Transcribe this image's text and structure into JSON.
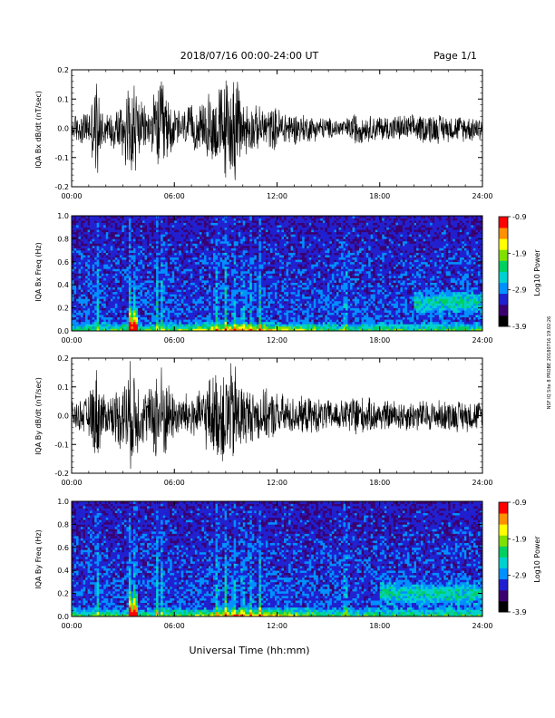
{
  "header": {
    "title": "2018/07/16  00:00-24:00 UT",
    "page_label": "Page 1/1"
  },
  "side_note": "NSF IQ Site 8 PROBE 20180716 19:02:26",
  "footer": {
    "xlabel": "Universal Time (hh:mm)"
  },
  "colorbar": {
    "label": "Log10 Power",
    "ticks": [
      "-0.9",
      "-1.9",
      "-2.9",
      "-3.9"
    ],
    "colors": [
      "#000000",
      "#3a0070",
      "#2020d0",
      "#0090ff",
      "#00d0d0",
      "#00d060",
      "#80e000",
      "#ffff00",
      "#ff9000",
      "#ff0000"
    ]
  },
  "chart_data": [
    {
      "type": "line",
      "title": "",
      "ylabel": "IQA Bx dB/dt (nT/sec)",
      "xlabel": "",
      "xlim": [
        0,
        24
      ],
      "ylim": [
        -0.2,
        0.2
      ],
      "xticks": [
        "00:00",
        "06:00",
        "12:00",
        "18:00",
        "24:00"
      ],
      "yticks": [
        "0.2",
        "0.1",
        "0.0",
        "-0.1",
        "-0.2"
      ],
      "series_color": "#000000",
      "envelope": {
        "x_hours": [
          0.0,
          0.5,
          1.0,
          1.5,
          1.6,
          2.0,
          2.5,
          3.0,
          3.4,
          3.7,
          4.0,
          4.5,
          5.0,
          5.3,
          5.6,
          6.0,
          6.5,
          7.0,
          7.5,
          8.0,
          8.5,
          8.8,
          9.0,
          9.3,
          9.6,
          10.0,
          10.5,
          11.0,
          12.0,
          13.0,
          14.0,
          15.0,
          16.0,
          16.7,
          17.0,
          18.0,
          19.0,
          20.0,
          21.0,
          22.0,
          23.0,
          24.0
        ],
        "amplitude": [
          0.05,
          0.06,
          0.07,
          0.2,
          0.12,
          0.06,
          0.08,
          0.12,
          0.2,
          0.2,
          0.1,
          0.07,
          0.16,
          0.2,
          0.12,
          0.08,
          0.07,
          0.09,
          0.08,
          0.14,
          0.15,
          0.18,
          0.2,
          0.2,
          0.2,
          0.12,
          0.09,
          0.08,
          0.08,
          0.06,
          0.05,
          0.04,
          0.035,
          0.07,
          0.05,
          0.05,
          0.05,
          0.05,
          0.06,
          0.05,
          0.05,
          0.05
        ]
      }
    },
    {
      "type": "heatmap",
      "title": "",
      "ylabel": "IQA Bx Freq (Hz)",
      "xlabel": "",
      "xlim": [
        0,
        24
      ],
      "ylim": [
        0.0,
        1.0
      ],
      "xticks": [
        "00:00",
        "06:00",
        "12:00",
        "18:00",
        "24:00"
      ],
      "yticks": [
        "1.0",
        "0.8",
        "0.6",
        "0.4",
        "0.2",
        "0.0"
      ],
      "zlim": [
        -3.9,
        -0.9
      ],
      "zlabel": "Log10 Power",
      "features": {
        "vertical_bursts_hours": [
          1.5,
          3.4,
          3.7,
          5.0,
          5.3,
          8.5,
          9.0,
          9.5,
          10.0,
          10.5,
          11.0,
          16.0
        ],
        "strong_low_freq_hours": [
          3.3,
          3.9
        ],
        "evening_enhancement_hours": [
          20.0,
          24.0
        ],
        "evening_enhancement_freq": 0.25
      }
    },
    {
      "type": "line",
      "title": "",
      "ylabel": "IQA By dB/dt (nT/sec)",
      "xlabel": "",
      "xlim": [
        0,
        24
      ],
      "ylim": [
        -0.2,
        0.2
      ],
      "xticks": [
        "00:00",
        "06:00",
        "12:00",
        "18:00",
        "24:00"
      ],
      "yticks": [
        "0.2",
        "0.1",
        "0.0",
        "-0.1",
        "-0.2"
      ],
      "series_color": "#000000",
      "envelope": {
        "x_hours": [
          0.0,
          0.5,
          1.0,
          1.5,
          1.6,
          2.0,
          2.5,
          3.0,
          3.4,
          3.7,
          4.0,
          4.5,
          5.0,
          5.3,
          5.6,
          6.0,
          6.5,
          7.0,
          7.5,
          8.0,
          8.5,
          8.8,
          9.0,
          9.3,
          9.6,
          10.0,
          10.5,
          11.0,
          12.0,
          13.0,
          14.0,
          15.0,
          16.0,
          16.7,
          17.0,
          18.0,
          19.0,
          20.0,
          21.0,
          22.0,
          23.0,
          24.0
        ],
        "amplitude": [
          0.05,
          0.06,
          0.08,
          0.2,
          0.14,
          0.07,
          0.1,
          0.14,
          0.2,
          0.2,
          0.12,
          0.1,
          0.2,
          0.2,
          0.14,
          0.09,
          0.08,
          0.1,
          0.09,
          0.15,
          0.17,
          0.2,
          0.2,
          0.2,
          0.2,
          0.13,
          0.1,
          0.1,
          0.09,
          0.07,
          0.07,
          0.06,
          0.06,
          0.1,
          0.07,
          0.06,
          0.06,
          0.06,
          0.06,
          0.06,
          0.06,
          0.06
        ]
      }
    },
    {
      "type": "heatmap",
      "title": "",
      "ylabel": "IQA By Freq (Hz)",
      "xlabel": "Universal Time (hh:mm)",
      "xlim": [
        0,
        24
      ],
      "ylim": [
        0.0,
        1.0
      ],
      "xticks": [
        "00:00",
        "06:00",
        "12:00",
        "18:00",
        "24:00"
      ],
      "yticks": [
        "1.0",
        "0.8",
        "0.6",
        "0.4",
        "0.2",
        "0.0"
      ],
      "zlim": [
        -3.9,
        -0.9
      ],
      "zlabel": "Log10 Power",
      "features": {
        "vertical_bursts_hours": [
          1.5,
          3.4,
          3.7,
          5.0,
          5.3,
          8.5,
          9.0,
          9.5,
          10.0,
          10.5,
          11.0,
          16.0
        ],
        "strong_low_freq_hours": [
          3.3,
          3.9
        ],
        "evening_enhancement_hours": [
          18.0,
          24.0
        ],
        "evening_enhancement_freq": 0.2
      }
    }
  ]
}
